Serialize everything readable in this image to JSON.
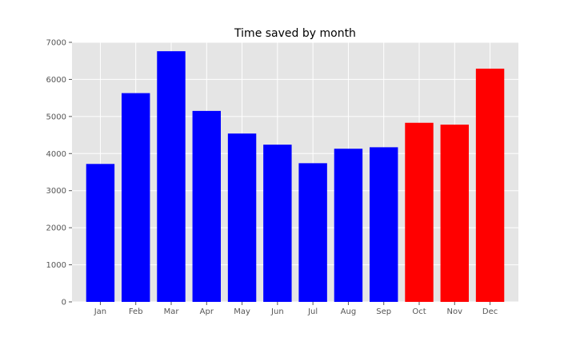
{
  "chart_data": {
    "type": "bar",
    "title": "Time saved by month",
    "xlabel": "",
    "ylabel": "",
    "categories": [
      "Jan",
      "Feb",
      "Mar",
      "Apr",
      "May",
      "Jun",
      "Jul",
      "Aug",
      "Sep",
      "Oct",
      "Nov",
      "Dec"
    ],
    "values": [
      3720,
      5630,
      6760,
      5150,
      4540,
      4240,
      3740,
      4130,
      4170,
      4830,
      4780,
      6290
    ],
    "bar_colors": [
      "#0000ff",
      "#0000ff",
      "#0000ff",
      "#0000ff",
      "#0000ff",
      "#0000ff",
      "#0000ff",
      "#0000ff",
      "#0000ff",
      "#ff0000",
      "#ff0000",
      "#ff0000"
    ],
    "ylim": [
      0,
      7000
    ],
    "yticks": [
      0,
      1000,
      2000,
      3000,
      4000,
      5000,
      6000,
      7000
    ],
    "grid": true,
    "legend": false,
    "colors": {
      "plot_background": "#e5e5e5",
      "grid": "#ffffff",
      "tick_text": "#555555"
    }
  }
}
